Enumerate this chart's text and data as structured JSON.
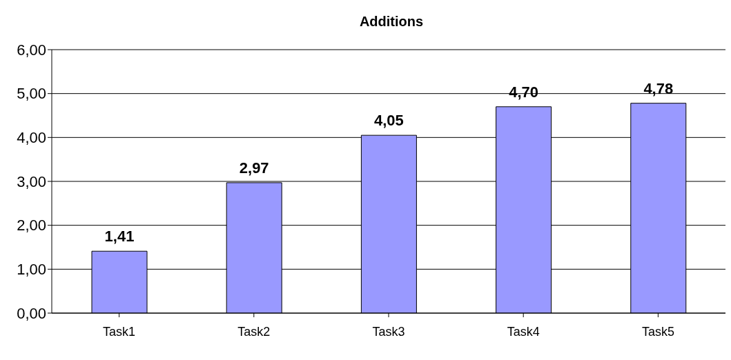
{
  "chart_data": {
    "type": "bar",
    "title": "Additions",
    "categories": [
      "Task1",
      "Task2",
      "Task3",
      "Task4",
      "Task5"
    ],
    "values": [
      1.41,
      2.97,
      4.05,
      4.7,
      4.78
    ],
    "value_labels": [
      "1,41",
      "2,97",
      "4,05",
      "4,70",
      "4,78"
    ],
    "color": "#9999ff",
    "ylim": [
      0,
      6
    ],
    "yticks": [
      {
        "value": 0,
        "label": "0,00"
      },
      {
        "value": 1,
        "label": "1,00"
      },
      {
        "value": 2,
        "label": "2,00"
      },
      {
        "value": 3,
        "label": "3,00"
      },
      {
        "value": 4,
        "label": "4,00"
      },
      {
        "value": 5,
        "label": "5,00"
      },
      {
        "value": 6,
        "label": "6,00"
      }
    ],
    "grid": "y",
    "legend": false
  }
}
